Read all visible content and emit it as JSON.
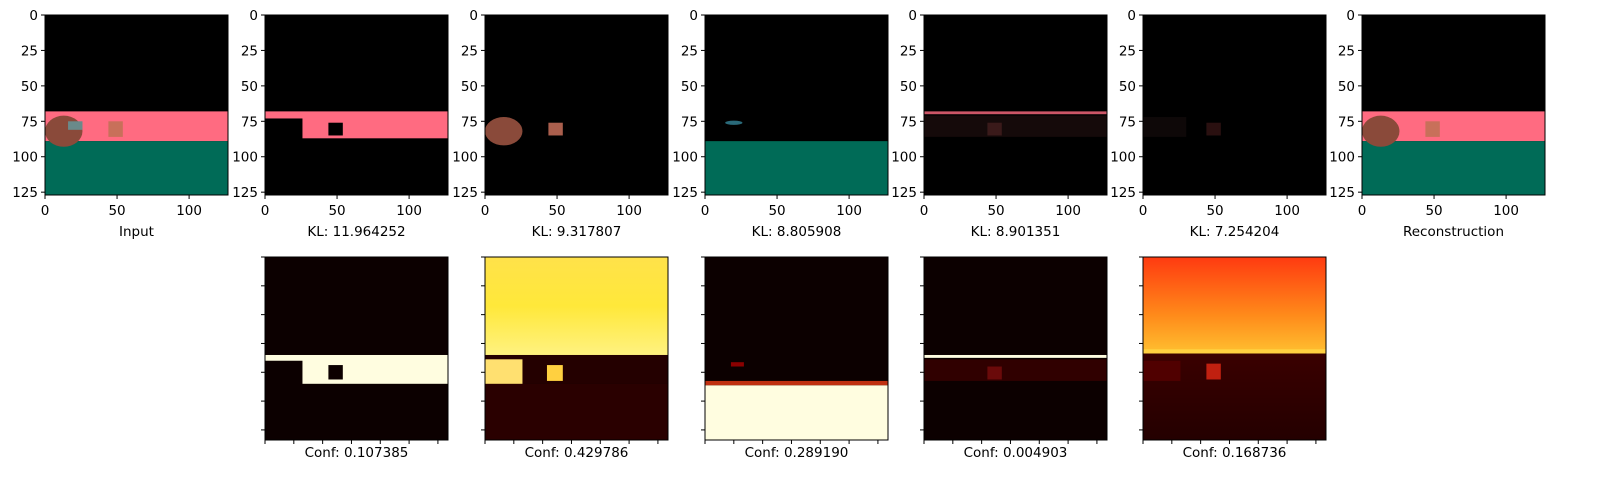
{
  "colors": {
    "background": "#ffffff",
    "black": "#000000",
    "pink": "#ff6b81",
    "teal": "#006b57",
    "jug": "#8a4a3a",
    "cube": "#c8705a",
    "heat_hot": "#fffde0",
    "heat_yellow": "#ffe23a",
    "heat_orange": "#ff6a1a",
    "heat_red": "#a01010",
    "heat_dark": "#200000"
  },
  "chart_data": [
    {
      "type": "heatmap",
      "id": "input",
      "label": "Input",
      "xlim": [
        0,
        127
      ],
      "ylim": [
        127,
        0
      ],
      "xticks": [
        0,
        50,
        100
      ],
      "yticks": [
        0,
        25,
        50,
        75,
        100,
        125
      ],
      "tick_labels_x": [
        "0",
        "50",
        "100"
      ],
      "tick_labels_y": [
        "0",
        "25",
        "50",
        "75",
        "100",
        "125"
      ]
    },
    {
      "type": "heatmap",
      "id": "slot-1",
      "label": "KL: 11.964252",
      "kl": 11.964252,
      "xlim": [
        0,
        127
      ],
      "ylim": [
        127,
        0
      ],
      "xticks": [
        0,
        50,
        100
      ],
      "yticks": [
        0,
        25,
        50,
        75,
        100,
        125
      ]
    },
    {
      "type": "heatmap",
      "id": "slot-2",
      "label": "KL: 9.317807",
      "kl": 9.317807,
      "xlim": [
        0,
        127
      ],
      "ylim": [
        127,
        0
      ],
      "xticks": [
        0,
        50,
        100
      ],
      "yticks": [
        0,
        25,
        50,
        75,
        100,
        125
      ]
    },
    {
      "type": "heatmap",
      "id": "slot-3",
      "label": "KL: 8.805908",
      "kl": 8.805908,
      "xlim": [
        0,
        127
      ],
      "ylim": [
        127,
        0
      ],
      "xticks": [
        0,
        50,
        100
      ],
      "yticks": [
        0,
        25,
        50,
        75,
        100,
        125
      ]
    },
    {
      "type": "heatmap",
      "id": "slot-4",
      "label": "KL: 8.901351",
      "kl": 8.901351,
      "xlim": [
        0,
        127
      ],
      "ylim": [
        127,
        0
      ],
      "xticks": [
        0,
        50,
        100
      ],
      "yticks": [
        0,
        25,
        50,
        75,
        100,
        125
      ]
    },
    {
      "type": "heatmap",
      "id": "slot-5",
      "label": "KL: 7.254204",
      "kl": 7.254204,
      "xlim": [
        0,
        127
      ],
      "ylim": [
        127,
        0
      ],
      "xticks": [
        0,
        50,
        100
      ],
      "yticks": [
        0,
        25,
        50,
        75,
        100,
        125
      ]
    },
    {
      "type": "heatmap",
      "id": "reconstruction",
      "label": "Reconstruction",
      "xlim": [
        0,
        127
      ],
      "ylim": [
        127,
        0
      ],
      "xticks": [
        0,
        50,
        100
      ],
      "yticks": [
        0,
        25,
        50,
        75,
        100,
        125
      ]
    },
    {
      "type": "heatmap",
      "id": "conf-1",
      "label": "Conf: 0.107385",
      "conf": 0.107385,
      "colormap": "hot"
    },
    {
      "type": "heatmap",
      "id": "conf-2",
      "label": "Conf: 0.429786",
      "conf": 0.429786,
      "colormap": "hot"
    },
    {
      "type": "heatmap",
      "id": "conf-3",
      "label": "Conf: 0.289190",
      "conf": 0.28919,
      "colormap": "hot"
    },
    {
      "type": "heatmap",
      "id": "conf-4",
      "label": "Conf: 0.004903",
      "conf": 0.004903,
      "colormap": "hot"
    },
    {
      "type": "heatmap",
      "id": "conf-5",
      "label": "Conf: 0.168736",
      "conf": 0.168736,
      "colormap": "hot"
    }
  ]
}
